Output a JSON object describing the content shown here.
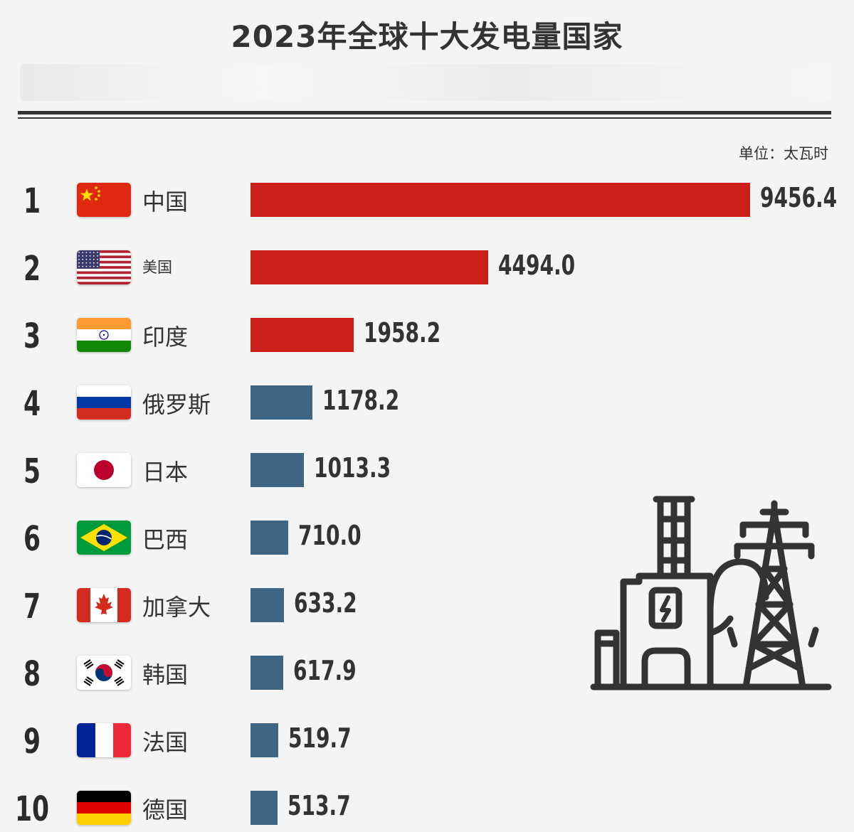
{
  "header": {
    "title": "2023年全球十大发电量国家",
    "unit": "单位：太瓦时"
  },
  "colors": {
    "top3_bar": "#cc1f1a",
    "other_bar": "#3f6585",
    "text": "#333333"
  },
  "chart_data": {
    "type": "bar",
    "orientation": "horizontal",
    "title": "2023年全球十大发电量国家",
    "unit": "单位：太瓦时",
    "xlim": [
      0,
      9456.4
    ],
    "items": [
      {
        "rank": "1",
        "country": "中国",
        "value": 9456.4,
        "label": "9456.4",
        "flag": "china-flag"
      },
      {
        "rank": "2",
        "country": "美国",
        "value": 4494.0,
        "label": "4494.0",
        "flag": "usa-flag"
      },
      {
        "rank": "3",
        "country": "印度",
        "value": 1958.2,
        "label": "1958.2",
        "flag": "india-flag"
      },
      {
        "rank": "4",
        "country": "俄罗斯",
        "value": 1178.2,
        "label": "1178.2",
        "flag": "russia-flag"
      },
      {
        "rank": "5",
        "country": "日本",
        "value": 1013.3,
        "label": "1013.3",
        "flag": "japan-flag"
      },
      {
        "rank": "6",
        "country": "巴西",
        "value": 710.0,
        "label": "710.0",
        "flag": "brazil-flag"
      },
      {
        "rank": "7",
        "country": "加拿大",
        "value": 633.2,
        "label": "633.2",
        "flag": "canada-flag"
      },
      {
        "rank": "8",
        "country": "韩国",
        "value": 617.9,
        "label": "617.9",
        "flag": "south-korea-flag"
      },
      {
        "rank": "9",
        "country": "法国",
        "value": 519.7,
        "label": "519.7",
        "flag": "france-flag"
      },
      {
        "rank": "10",
        "country": "德国",
        "value": 513.7,
        "label": "513.7",
        "flag": "germany-flag"
      }
    ]
  },
  "decoration": {
    "icon": "power-plant-transmission-tower-icon"
  }
}
